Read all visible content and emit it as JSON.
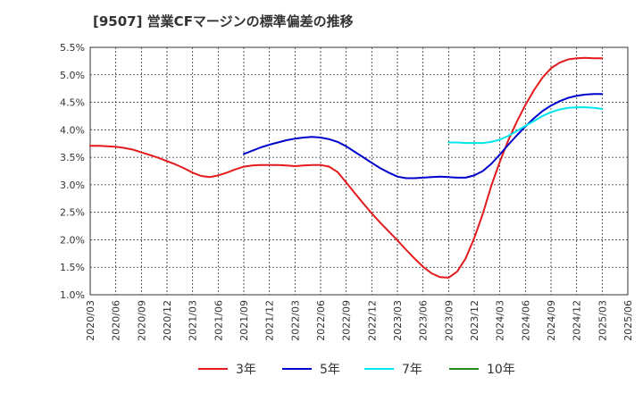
{
  "chart_data": {
    "type": "line",
    "title": "[9507]  営業CFマージンの標準偏差の推移",
    "xlabel": "",
    "ylabel": "",
    "ylim": [
      1.0,
      5.5
    ],
    "y_ticks": [
      "1.0%",
      "1.5%",
      "2.0%",
      "2.5%",
      "3.0%",
      "3.5%",
      "4.0%",
      "4.5%",
      "5.0%",
      "5.5%"
    ],
    "x_ticks": [
      "2020/03",
      "2020/06",
      "2020/09",
      "2020/12",
      "2021/03",
      "2021/06",
      "2021/09",
      "2021/12",
      "2022/03",
      "2022/06",
      "2022/09",
      "2022/12",
      "2023/03",
      "2023/06",
      "2023/09",
      "2023/12",
      "2024/03",
      "2024/06",
      "2024/09",
      "2024/12",
      "2025/03",
      "2025/06"
    ],
    "grid": true,
    "legend_position": "bottom",
    "series": [
      {
        "name": "3年",
        "color": "#e41a1c",
        "points": [
          [
            "2020/03",
            3.71
          ],
          [
            "2020/04",
            3.71
          ],
          [
            "2020/05",
            3.7
          ],
          [
            "2020/06",
            3.69
          ],
          [
            "2020/07",
            3.67
          ],
          [
            "2020/08",
            3.64
          ],
          [
            "2020/09",
            3.59
          ],
          [
            "2020/10",
            3.54
          ],
          [
            "2020/11",
            3.49
          ],
          [
            "2020/12",
            3.43
          ],
          [
            "2021/01",
            3.37
          ],
          [
            "2021/02",
            3.3
          ],
          [
            "2021/03",
            3.22
          ],
          [
            "2021/04",
            3.16
          ],
          [
            "2021/05",
            3.14
          ],
          [
            "2021/06",
            3.17
          ],
          [
            "2021/07",
            3.22
          ],
          [
            "2021/08",
            3.28
          ],
          [
            "2021/09",
            3.33
          ],
          [
            "2021/10",
            3.35
          ],
          [
            "2021/11",
            3.36
          ],
          [
            "2021/12",
            3.36
          ],
          [
            "2022/01",
            3.36
          ],
          [
            "2022/02",
            3.35
          ],
          [
            "2022/03",
            3.34
          ],
          [
            "2022/04",
            3.35
          ],
          [
            "2022/05",
            3.36
          ],
          [
            "2022/06",
            3.36
          ],
          [
            "2022/07",
            3.33
          ],
          [
            "2022/08",
            3.23
          ],
          [
            "2022/09",
            3.04
          ],
          [
            "2022/10",
            2.85
          ],
          [
            "2022/11",
            2.66
          ],
          [
            "2022/12",
            2.48
          ],
          [
            "2023/01",
            2.31
          ],
          [
            "2023/02",
            2.15
          ],
          [
            "2023/03",
            1.99
          ],
          [
            "2023/04",
            1.82
          ],
          [
            "2023/05",
            1.66
          ],
          [
            "2023/06",
            1.51
          ],
          [
            "2023/07",
            1.39
          ],
          [
            "2023/08",
            1.32
          ],
          [
            "2023/09",
            1.31
          ],
          [
            "2023/10",
            1.42
          ],
          [
            "2023/11",
            1.66
          ],
          [
            "2023/12",
            2.03
          ],
          [
            "2024/01",
            2.47
          ],
          [
            "2024/02",
            2.98
          ],
          [
            "2024/03",
            3.42
          ],
          [
            "2024/04",
            3.81
          ],
          [
            "2024/05",
            4.15
          ],
          [
            "2024/06",
            4.45
          ],
          [
            "2024/07",
            4.72
          ],
          [
            "2024/08",
            4.95
          ],
          [
            "2024/09",
            5.12
          ],
          [
            "2024/10",
            5.22
          ],
          [
            "2024/11",
            5.28
          ],
          [
            "2024/12",
            5.3
          ],
          [
            "2025/01",
            5.31
          ],
          [
            "2025/02",
            5.3
          ],
          [
            "2025/03",
            5.3
          ]
        ]
      },
      {
        "name": "5年",
        "color": "#0000cc",
        "points": [
          [
            "2021/09",
            3.56
          ],
          [
            "2021/10",
            3.62
          ],
          [
            "2021/11",
            3.68
          ],
          [
            "2021/12",
            3.73
          ],
          [
            "2022/01",
            3.77
          ],
          [
            "2022/02",
            3.81
          ],
          [
            "2022/03",
            3.84
          ],
          [
            "2022/04",
            3.86
          ],
          [
            "2022/05",
            3.87
          ],
          [
            "2022/06",
            3.86
          ],
          [
            "2022/07",
            3.83
          ],
          [
            "2022/08",
            3.78
          ],
          [
            "2022/09",
            3.7
          ],
          [
            "2022/10",
            3.6
          ],
          [
            "2022/11",
            3.5
          ],
          [
            "2022/12",
            3.4
          ],
          [
            "2023/01",
            3.3
          ],
          [
            "2023/02",
            3.22
          ],
          [
            "2023/03",
            3.15
          ],
          [
            "2023/04",
            3.12
          ],
          [
            "2023/05",
            3.12
          ],
          [
            "2023/06",
            3.13
          ],
          [
            "2023/07",
            3.14
          ],
          [
            "2023/08",
            3.15
          ],
          [
            "2023/09",
            3.14
          ],
          [
            "2023/10",
            3.13
          ],
          [
            "2023/11",
            3.13
          ],
          [
            "2023/12",
            3.17
          ],
          [
            "2024/01",
            3.25
          ],
          [
            "2024/02",
            3.38
          ],
          [
            "2024/03",
            3.55
          ],
          [
            "2024/04",
            3.73
          ],
          [
            "2024/05",
            3.9
          ],
          [
            "2024/06",
            4.06
          ],
          [
            "2024/07",
            4.21
          ],
          [
            "2024/08",
            4.34
          ],
          [
            "2024/09",
            4.44
          ],
          [
            "2024/10",
            4.52
          ],
          [
            "2024/11",
            4.58
          ],
          [
            "2024/12",
            4.62
          ],
          [
            "2025/01",
            4.64
          ],
          [
            "2025/02",
            4.65
          ],
          [
            "2025/03",
            4.65
          ]
        ]
      },
      {
        "name": "7年",
        "color": "#00e5ee",
        "points": [
          [
            "2023/09",
            3.77
          ],
          [
            "2023/10",
            3.77
          ],
          [
            "2023/11",
            3.76
          ],
          [
            "2023/12",
            3.76
          ],
          [
            "2024/01",
            3.76
          ],
          [
            "2024/02",
            3.78
          ],
          [
            "2024/03",
            3.82
          ],
          [
            "2024/04",
            3.89
          ],
          [
            "2024/05",
            3.98
          ],
          [
            "2024/06",
            4.07
          ],
          [
            "2024/07",
            4.16
          ],
          [
            "2024/08",
            4.25
          ],
          [
            "2024/09",
            4.32
          ],
          [
            "2024/10",
            4.37
          ],
          [
            "2024/11",
            4.4
          ],
          [
            "2024/12",
            4.41
          ],
          [
            "2025/01",
            4.41
          ],
          [
            "2025/02",
            4.4
          ],
          [
            "2025/03",
            4.38
          ]
        ]
      },
      {
        "name": "10年",
        "color": "#228b22",
        "points": []
      }
    ]
  }
}
